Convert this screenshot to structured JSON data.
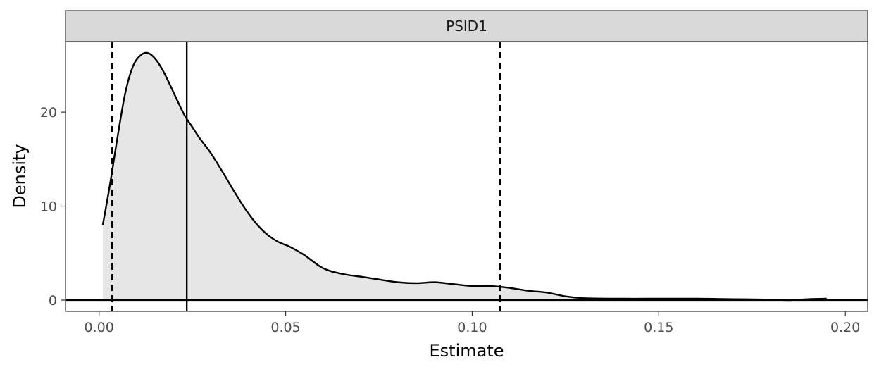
{
  "chart_data": {
    "type": "area",
    "panel_label": "PSID1",
    "xlabel": "Estimate",
    "ylabel": "Density",
    "xlim": [
      -0.009,
      0.206
    ],
    "ylim": [
      -1.2,
      27.5
    ],
    "x_ticks": [
      0.0,
      0.05,
      0.1,
      0.15,
      0.2
    ],
    "x_tick_labels": [
      "0.00",
      "0.05",
      "0.10",
      "0.15",
      "0.20"
    ],
    "y_ticks": [
      0,
      10,
      20
    ],
    "y_tick_labels": [
      "0",
      "10",
      "20"
    ],
    "grid": false,
    "series": [
      {
        "name": "density",
        "x": [
          0.001,
          0.003,
          0.005,
          0.007,
          0.009,
          0.011,
          0.013,
          0.015,
          0.017,
          0.019,
          0.021,
          0.023,
          0.025,
          0.027,
          0.03,
          0.033,
          0.036,
          0.039,
          0.042,
          0.045,
          0.048,
          0.051,
          0.055,
          0.06,
          0.065,
          0.07,
          0.075,
          0.08,
          0.085,
          0.09,
          0.095,
          0.1,
          0.105,
          0.11,
          0.115,
          0.12,
          0.125,
          0.13,
          0.14,
          0.15,
          0.16,
          0.17,
          0.18,
          0.185,
          0.19,
          0.195
        ],
        "y": [
          8.0,
          12.5,
          17.5,
          22.0,
          24.8,
          26.0,
          26.3,
          25.7,
          24.5,
          22.9,
          21.2,
          19.6,
          18.4,
          17.2,
          15.6,
          13.7,
          11.7,
          9.8,
          8.2,
          7.0,
          6.2,
          5.7,
          4.8,
          3.4,
          2.8,
          2.5,
          2.2,
          1.9,
          1.8,
          1.9,
          1.7,
          1.5,
          1.5,
          1.3,
          1.0,
          0.8,
          0.4,
          0.2,
          0.15,
          0.15,
          0.15,
          0.1,
          0.05,
          0.0,
          0.1,
          0.15
        ]
      }
    ],
    "vlines": [
      {
        "x": 0.0035,
        "style": "dashed"
      },
      {
        "x": 0.0235,
        "style": "solid"
      },
      {
        "x": 0.1075,
        "style": "dashed"
      }
    ],
    "hline": {
      "y": 0,
      "style": "solid"
    },
    "colors": {
      "fill": "#e6e6e6",
      "line": "#000000",
      "strip_bg": "#d9d9d9",
      "panel_border": "#333333"
    }
  }
}
